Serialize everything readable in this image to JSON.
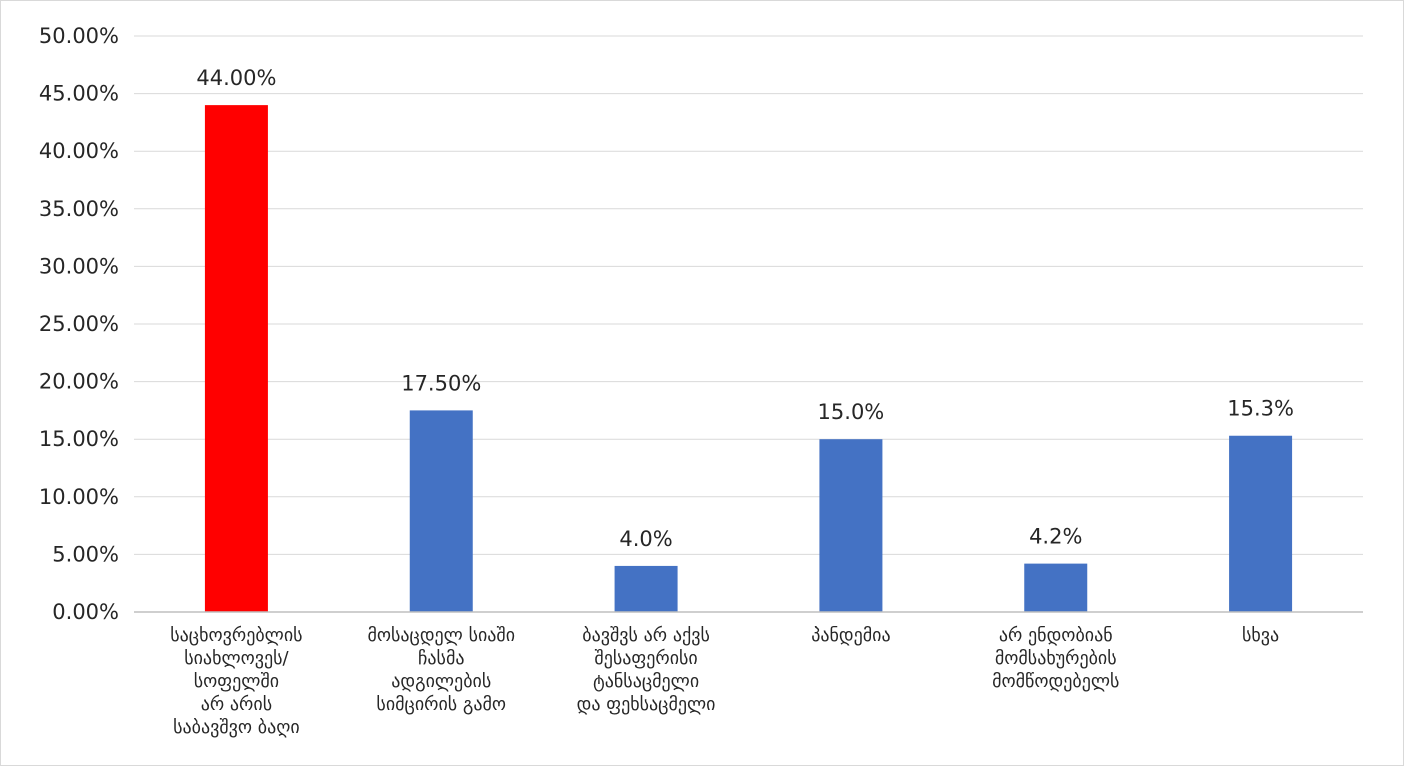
{
  "chart_data": {
    "type": "bar",
    "title": "",
    "xlabel": "",
    "ylabel": "",
    "ylim": [
      0,
      0.5
    ],
    "y_ticks": [
      "0.00%",
      "5.00%",
      "10.00%",
      "15.00%",
      "20.00%",
      "25.00%",
      "30.00%",
      "35.00%",
      "40.00%",
      "45.00%",
      "50.00%"
    ],
    "y_tick_values": [
      0,
      0.05,
      0.1,
      0.15,
      0.2,
      0.25,
      0.3,
      0.35,
      0.4,
      0.45,
      0.5
    ],
    "grid": true,
    "legend": "none",
    "categories": [
      [
        "საცხოვრებლის",
        "სიახლოვეს/",
        "სოფელში",
        "არ არის",
        "საბავშვო ბაღი"
      ],
      [
        "მოსაცდელ სიაში",
        "ჩასმა",
        "ადგილების",
        "სიმცირის გამო"
      ],
      [
        "ბავშვს არ აქვს",
        "შესაფერისი",
        "ტანსაცმელი",
        "და ფეხსაცმელი"
      ],
      [
        "პანდემია"
      ],
      [
        "არ ენდობიან",
        "მომსახურების",
        "მომწოდებელს"
      ],
      [
        "სხვა"
      ]
    ],
    "values": [
      0.44,
      0.175,
      0.04,
      0.15,
      0.042,
      0.153
    ],
    "data_labels": [
      "44.00%",
      "17.50%",
      "4.0%",
      "15.0%",
      "4.2%",
      "15.3%"
    ],
    "colors": [
      "#ff0000",
      "#4472c4",
      "#4472c4",
      "#4472c4",
      "#4472c4",
      "#4472c4"
    ],
    "gridline_color": "#d9d9d9",
    "axis_color": "#bfbfbf"
  }
}
